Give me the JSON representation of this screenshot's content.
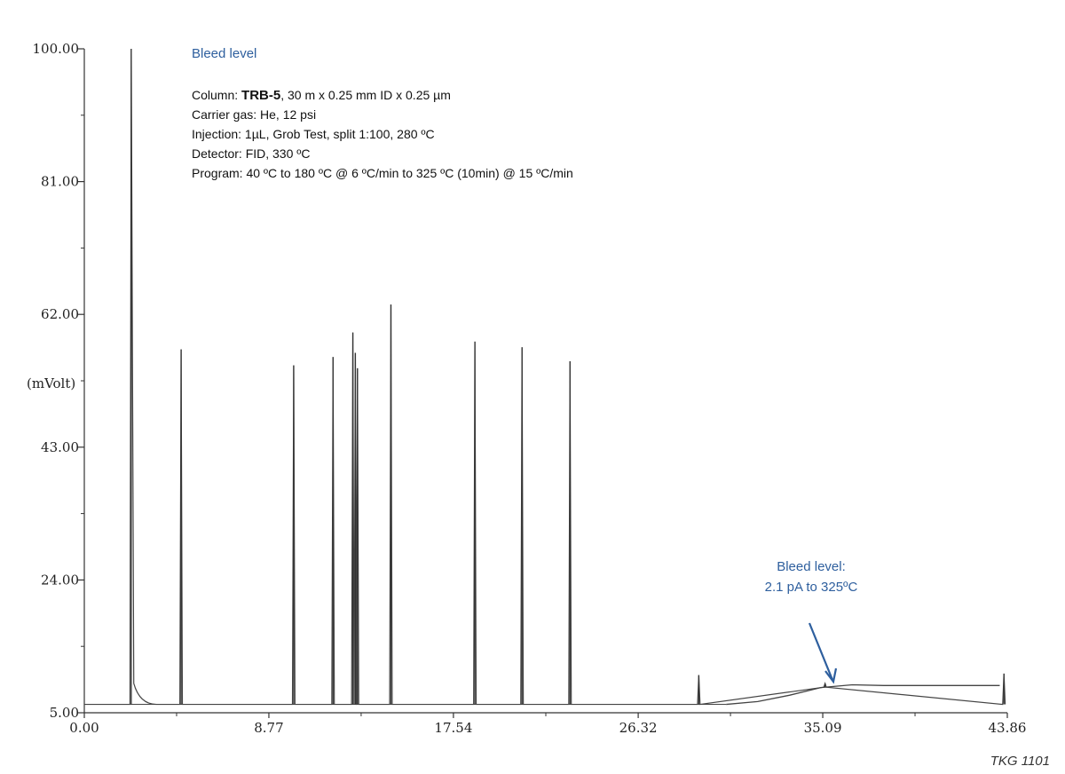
{
  "chart_data": {
    "type": "line",
    "ylabel": "(mVolt)",
    "xlim": [
      0.0,
      43.86
    ],
    "ylim": [
      5.0,
      100.0
    ],
    "x_ticks": [
      "0.00",
      "8.77",
      "17.54",
      "26.32",
      "35.09",
      "43.86"
    ],
    "y_ticks": [
      "5.00",
      "24.00",
      "43.00",
      "62.00",
      "81.00",
      "100.00"
    ],
    "grid": false,
    "baseline": 6.2,
    "peaks": [
      {
        "x": 2.23,
        "y": 100.0
      },
      {
        "x": 4.6,
        "y": 57.0
      },
      {
        "x": 9.95,
        "y": 54.7
      },
      {
        "x": 11.82,
        "y": 55.9
      },
      {
        "x": 12.76,
        "y": 59.4
      },
      {
        "x": 12.88,
        "y": 56.5
      },
      {
        "x": 12.98,
        "y": 54.3
      },
      {
        "x": 14.57,
        "y": 63.4
      },
      {
        "x": 18.56,
        "y": 58.1
      },
      {
        "x": 20.8,
        "y": 57.3
      },
      {
        "x": 23.08,
        "y": 55.3
      },
      {
        "x": 29.2,
        "y": 10.4
      },
      {
        "x": 35.2,
        "y": 9.2
      },
      {
        "x": 43.7,
        "y": 10.6
      }
    ],
    "bleed_curve": [
      {
        "x": 30.5,
        "y": 6.2
      },
      {
        "x": 32.0,
        "y": 6.6
      },
      {
        "x": 33.5,
        "y": 7.5
      },
      {
        "x": 35.0,
        "y": 8.6
      },
      {
        "x": 36.5,
        "y": 9.0
      },
      {
        "x": 38.0,
        "y": 8.9
      },
      {
        "x": 43.5,
        "y": 8.9
      }
    ]
  },
  "info": {
    "heading": "Bleed level",
    "column_label": "Column: ",
    "column_name": "TRB-5",
    "column_spec": ", 30 m x 0.25 mm ID x 0.25 µm",
    "carrier": "Carrier gas: He, 12 psi",
    "injection": "Injection: 1µL, Grob Test, split 1:100, 280 ºC",
    "detector": "Detector: FID, 330 ºC",
    "program": "Program: 40 ºC to 180 ºC @ 6 ºC/min to 325 ºC (10min) @ 15 ºC/min"
  },
  "annotation": {
    "line1": "Bleed level:",
    "line2": "2.1 pA to 325ºC",
    "color": "#2e5f9e"
  },
  "watermark": "TKG 1101"
}
